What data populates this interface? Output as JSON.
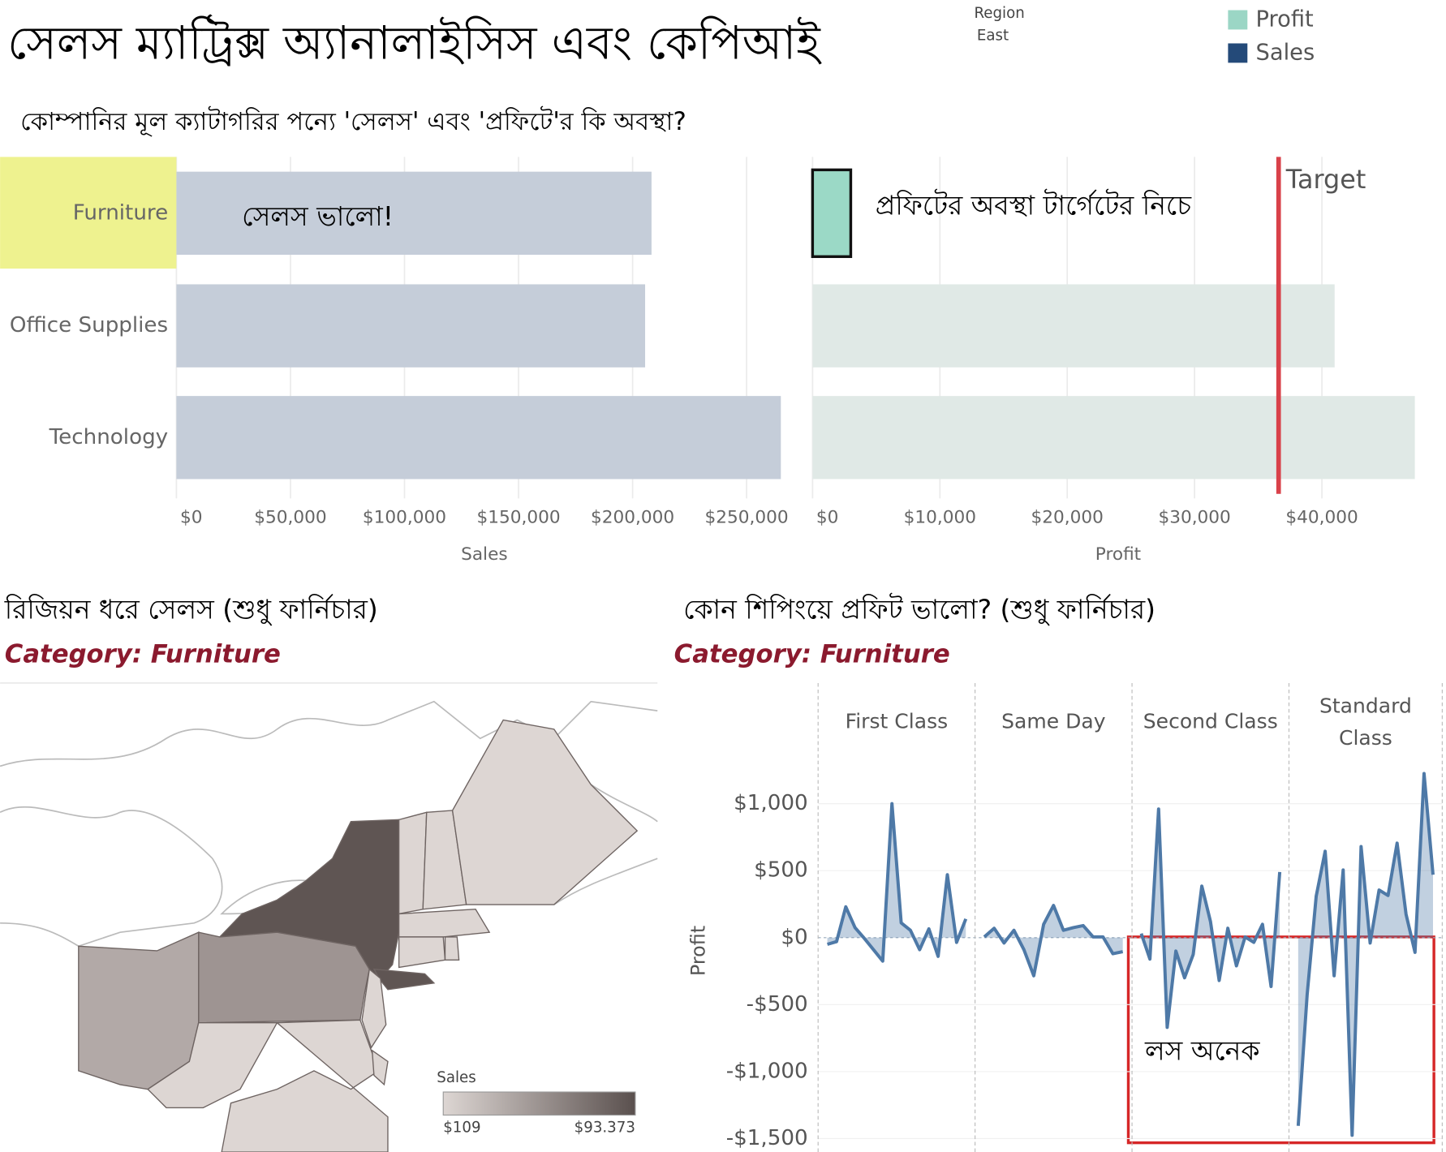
{
  "header": {
    "title": "সেলস ম্যাট্রিক্স অ্যানালাইসিস এবং কেপিআই",
    "region_label": "Region",
    "region_value": "East"
  },
  "legend": [
    {
      "name": "Profit",
      "color": "#9bd6c5"
    },
    {
      "name": "Sales",
      "color": "#244a79"
    }
  ],
  "chart_data": [
    {
      "type": "bar",
      "title": "কোম্পানির মূল ক্যাটাগরির পন্যে 'সেলস' এবং 'প্রফিটে'র কি অবস্থা?",
      "categories": [
        "Furniture",
        "Office Supplies",
        "Technology"
      ],
      "values": [
        208300,
        205500,
        265000
      ],
      "color": "#c5cdd9",
      "highlight_color": "#eef28f",
      "xlabel": "Sales",
      "xlim": [
        0,
        270000
      ],
      "xticks": [
        {
          "value": 0,
          "label": "$0"
        },
        {
          "value": 50000,
          "label": "$50,000"
        },
        {
          "value": 100000,
          "label": "$100,000"
        },
        {
          "value": 150000,
          "label": "$150,000"
        },
        {
          "value": 200000,
          "label": "$200,000"
        },
        {
          "value": 250000,
          "label": "$250,000"
        }
      ],
      "grid": true,
      "annotation": "সেলস ভালো!"
    },
    {
      "type": "bar",
      "values": [
        3000,
        41000,
        47300
      ],
      "color": "#e0e9e6",
      "highlight_color": "#9bd9c6",
      "xlabel": "Profit",
      "xlim": [
        0,
        48000
      ],
      "xticks": [
        {
          "value": 0,
          "label": "$0"
        },
        {
          "value": 10000,
          "label": "$10,000"
        },
        {
          "value": 20000,
          "label": "$20,000"
        },
        {
          "value": 30000,
          "label": "$30,000"
        },
        {
          "value": 40000,
          "label": "$40,000"
        }
      ],
      "grid": true,
      "target": {
        "value": 36600,
        "label": "Target",
        "color": "#d9414a"
      },
      "annotation": "প্রফিটের অবস্থা টার্গেটের নিচে"
    },
    {
      "type": "map",
      "title": "রিজিয়ন ধরে সেলস (শুধু ফার্নিচার)",
      "subtitle": "Category: Furniture",
      "legend_title": "Sales",
      "color_range": [
        {
          "value": 109,
          "label": "$109"
        },
        {
          "value": 93373,
          "label": "$93.373"
        }
      ],
      "colors": [
        "#ddd6d3",
        "#5a504e"
      ]
    },
    {
      "type": "line",
      "title": "কোন শিপিংয়ে প্রফিট ভালো? (শুধু ফার্নিচার)",
      "subtitle": "Category: Furniture",
      "ylabel": "Profit",
      "ylim": [
        -1600,
        1900
      ],
      "yticks": [
        {
          "value": -1500,
          "label": "-$1,500"
        },
        {
          "value": -1000,
          "label": "-$1,000"
        },
        {
          "value": -500,
          "label": "-$500"
        },
        {
          "value": 0,
          "label": "$0"
        },
        {
          "value": 500,
          "label": "$500"
        },
        {
          "value": 1000,
          "label": "$1,000"
        }
      ],
      "series": [
        {
          "name": "First Class",
          "color": "#4e79a7",
          "values": [
            -50,
            -30,
            230,
            75,
            -5,
            -90,
            -175,
            1000,
            110,
            55,
            -90,
            65,
            -140,
            470,
            -35,
            140
          ]
        },
        {
          "name": "Same Day",
          "color": "#4e79a7",
          "values": [
            5,
            70,
            -40,
            55,
            -90,
            -285,
            100,
            240,
            55,
            75,
            90,
            5,
            5,
            -120,
            -105
          ]
        },
        {
          "name": "Second Class",
          "color": "#4e79a7",
          "values": [
            30,
            -160,
            960,
            -670,
            -100,
            -300,
            -125,
            385,
            120,
            -320,
            70,
            -210,
            5,
            -35,
            100,
            -365,
            490
          ]
        },
        {
          "name": "Standard Class",
          "color": "#4e79a7",
          "values": [
            -1405,
            -425,
            310,
            645,
            -285,
            505,
            -1475,
            680,
            -40,
            355,
            315,
            705,
            175,
            -110,
            1225,
            470
          ]
        }
      ],
      "annotation": "লস অনেক"
    }
  ]
}
